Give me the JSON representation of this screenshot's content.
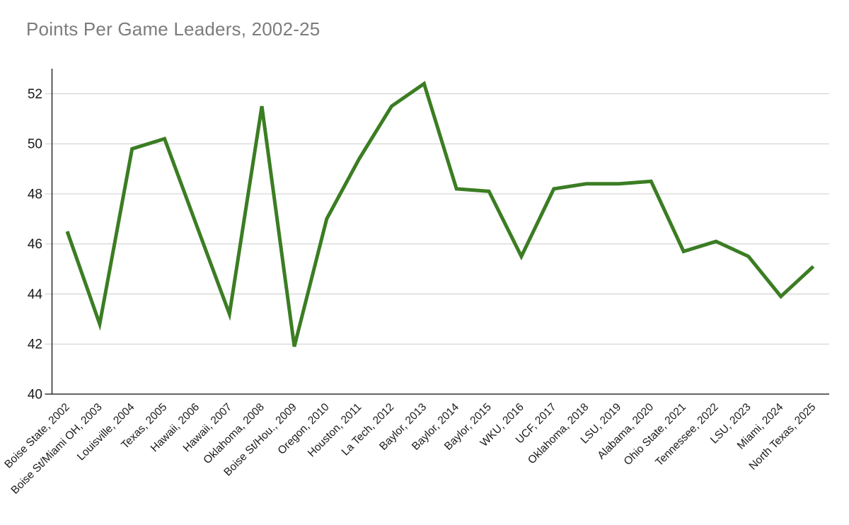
{
  "chart_data": {
    "type": "line",
    "title": "Points Per Game Leaders, 2002-25",
    "categories": [
      "Boise State, 2002",
      "Boise St/Miami OH, 2003",
      "Louisville, 2004",
      "Texas, 2005",
      "Hawaii, 2006",
      "Hawaii, 2007",
      "Oklahoma, 2008",
      "Boise St/Hou., 2009",
      "Oregon, 2010",
      "Houston, 2011",
      "La Tech, 2012",
      "Baylor, 2013",
      "Baylor, 2014",
      "Baylor, 2015",
      "WKU, 2016",
      "UCF, 2017",
      "Oklahoma, 2018",
      "LSU, 2019",
      "Alabama, 2020",
      "Ohio State, 2021",
      "Tennessee, 2022",
      "LSU, 2023",
      "Miami, 2024",
      "North Texas, 2025"
    ],
    "values": [
      46.5,
      42.8,
      49.8,
      50.2,
      46.7,
      43.2,
      51.5,
      41.9,
      47.0,
      49.4,
      51.5,
      52.4,
      48.2,
      48.1,
      45.5,
      48.2,
      48.4,
      48.4,
      48.5,
      45.7,
      46.1,
      45.5,
      43.9,
      45.1
    ],
    "xlabel": "",
    "ylabel": "",
    "ylim": [
      40,
      53
    ],
    "yticks": [
      40,
      42,
      44,
      46,
      48,
      50,
      52
    ],
    "grid": true,
    "legend": false,
    "line_color": "#3b7d23",
    "grid_color": "#cccccc",
    "axis_color": "#333333",
    "tick_label_color": "#1a1a1a",
    "title_color": "#7c7c7c"
  }
}
